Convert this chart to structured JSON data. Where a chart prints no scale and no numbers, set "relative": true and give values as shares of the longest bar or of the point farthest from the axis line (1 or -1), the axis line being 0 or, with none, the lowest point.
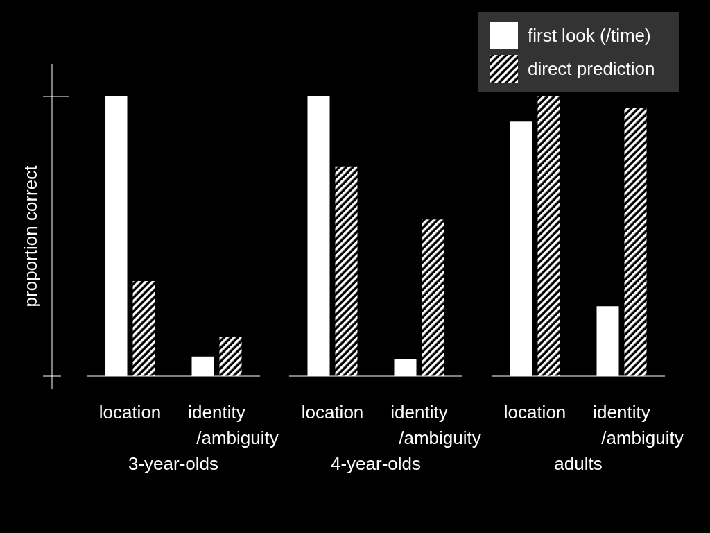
{
  "chart_data": [
    {
      "type": "bar",
      "ylabel": "proportion correct",
      "xlabel": "3-year-olds",
      "categories": [
        "location",
        "identity\n/ambiguity"
      ],
      "relative": true,
      "tick_labels": "x",
      "series": [
        {
          "color": "#ffffff",
          "values": [
            1,
            0.07
          ]
        },
        {
          "color": "#ffffff",
          "values": [
            0.34,
            0.14
          ]
        }
      ]
    },
    {
      "type": "bar",
      "xlabel": "4-year-olds",
      "categories": [
        "location",
        "identity\n/ambiguity"
      ],
      "relative": true,
      "tick_labels": "x",
      "series": [
        {
          "color": "#ffffff",
          "values": [
            1,
            0.06
          ]
        },
        {
          "color": "#ffffff",
          "values": [
            0.75,
            0.56
          ]
        }
      ]
    },
    {
      "type": "bar",
      "xlabel": "adults",
      "categories": [
        "location",
        "identity\n/ambiguity"
      ],
      "relative": true,
      "tick_labels": "x",
      "legend": "top right",
      "series": [
        {
          "name": "first look (/time)",
          "color": "#ffffff",
          "values": [
            0.91,
            0.25
          ]
        },
        {
          "name": "direct prediction",
          "color": "#ffffff",
          "values": [
            1,
            0.96
          ]
        }
      ]
    }
  ]
}
